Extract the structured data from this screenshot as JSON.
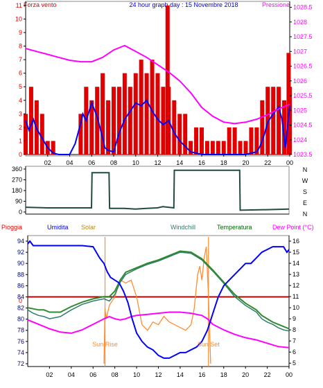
{
  "colors": {
    "red": "#e00000",
    "blue": "#0000ff",
    "magenta": "#ff00ff",
    "dark_green": "#006400",
    "olive": "#b8860b",
    "teal": "#2e7d6e",
    "orange": "#ff8c2e",
    "axis": "#000000",
    "background": "#ffffff"
  },
  "header": {
    "left_label": "Forza vento",
    "center_title": "24 hour graph day : 15 Novembre 2018",
    "right_label": "Pressione"
  },
  "x_ticks": [
    "02",
    "04",
    "06",
    "08",
    "10",
    "12",
    "14",
    "16",
    "18",
    "20",
    "22",
    "00"
  ],
  "panel1": {
    "left_ticks": [
      "0",
      "1",
      "2",
      "3",
      "4",
      "5",
      "6",
      "7",
      "8",
      "9",
      "10",
      "11"
    ],
    "right_ticks": [
      "1023.5",
      "1024",
      "1024.5",
      "1025",
      "1025.5",
      "1026",
      "1026.5",
      "1027",
      "1027.5",
      "1028",
      "1028.5"
    ]
  },
  "panel2": {
    "left_ticks": [
      "0",
      "90",
      "180",
      "270",
      "360"
    ],
    "right_letters": [
      "N",
      "W",
      "S",
      "E",
      "N"
    ]
  },
  "panel3": {
    "labels": {
      "pioggia": "Pioggia",
      "umidita": "Umidita",
      "solar": "Solar",
      "windchill": "Windchill",
      "temperatura": "Temperatura",
      "dewpoint": "Dew Point (°C)"
    },
    "left_ticks": [
      "72",
      "74",
      "76",
      "78",
      "80",
      "82",
      "84",
      "86",
      "88",
      "90",
      "92",
      "94"
    ],
    "right_ticks": [
      "5",
      "6",
      "7",
      "8",
      "9",
      "10",
      "11",
      "12",
      "13",
      "14",
      "15",
      "16"
    ],
    "rain_label": "0",
    "sunrise_label": "Sun Rise",
    "sunset_label": "Sun Set"
  },
  "chart_data": [
    {
      "type": "line",
      "title": "24 hour graph day : 15 Novembre 2018",
      "x_unit": "hour",
      "xlim": [
        0,
        24
      ],
      "left_axis": {
        "label": "Forza vento",
        "ylim": [
          0,
          11.3
        ]
      },
      "right_axis": {
        "label": "Pressione",
        "ylim": [
          1023.5,
          1028.7
        ]
      },
      "series": [
        {
          "name": "Forza vento",
          "axis": "left",
          "style": "bars",
          "x": [
            0.0,
            0.5,
            1.0,
            1.5,
            2.0,
            2.5,
            3.0,
            3.5,
            4.0,
            4.5,
            5.0,
            5.5,
            6.0,
            6.5,
            7.0,
            7.5,
            8.0,
            8.5,
            9.0,
            9.5,
            10.0,
            10.5,
            11.0,
            11.5,
            12.0,
            12.5,
            12.9,
            13.0,
            13.5,
            14.0,
            14.5,
            15.0,
            15.5,
            16.0,
            16.5,
            17.0,
            17.5,
            18.0,
            18.5,
            19.0,
            19.5,
            20.0,
            20.5,
            21.0,
            21.5,
            22.0,
            22.5,
            23.0,
            23.5,
            23.9,
            24.0
          ],
          "values": [
            3,
            5,
            4,
            3,
            1,
            1,
            0,
            0,
            0,
            0,
            3,
            5,
            4,
            5,
            6,
            4,
            5,
            5,
            6,
            5,
            6,
            7,
            6,
            7,
            6,
            5,
            11,
            5,
            4,
            3,
            3,
            1,
            2,
            2,
            1,
            1,
            1,
            1,
            2,
            2,
            1,
            1,
            2,
            2,
            4,
            5,
            5,
            5,
            4,
            7.5,
            5
          ]
        },
        {
          "name": "Wind",
          "axis": "left",
          "style": "line",
          "x": [
            0.0,
            0.3,
            0.7,
            1.0,
            1.5,
            2.0,
            2.5,
            3.0,
            3.5,
            4.0,
            4.5,
            5.0,
            5.2,
            5.5,
            6.0,
            6.5,
            7.0,
            7.2,
            7.5,
            8.0,
            8.5,
            9.0,
            9.5,
            10.0,
            10.5,
            11.0,
            11.5,
            12.0,
            12.5,
            13.0,
            13.5,
            14.0,
            14.5,
            15.0,
            15.5,
            16.0,
            17.0,
            18.0,
            19.0,
            20.0,
            21.0,
            21.3,
            21.7,
            22.0,
            22.5,
            23.0,
            23.3,
            23.6,
            24.0
          ],
          "values": [
            2.5,
            1.8,
            2.6,
            1.9,
            1.2,
            0.5,
            0.1,
            0.0,
            0.0,
            0.0,
            0.8,
            2.3,
            3.0,
            2.5,
            3.8,
            2.8,
            1.2,
            0.5,
            0.3,
            0.2,
            1.6,
            2.6,
            3.2,
            3.8,
            3.6,
            4.0,
            3.2,
            2.6,
            2.2,
            2.5,
            1.6,
            1.0,
            0.6,
            0.2,
            0.1,
            0.0,
            0.0,
            0.0,
            0.0,
            0.0,
            0.2,
            0.6,
            1.5,
            2.4,
            3.0,
            3.5,
            2.6,
            0.5,
            3.6
          ]
        },
        {
          "name": "Pressione",
          "axis": "right",
          "style": "line",
          "x": [
            0.0,
            1.0,
            2.0,
            3.0,
            4.0,
            5.0,
            6.0,
            7.0,
            8.0,
            9.0,
            10.0,
            11.0,
            12.0,
            13.0,
            14.0,
            15.0,
            16.0,
            17.0,
            18.0,
            19.0,
            20.0,
            21.0,
            22.0,
            23.0,
            24.0
          ],
          "values": [
            1027.1,
            1027.0,
            1026.9,
            1026.8,
            1026.7,
            1026.65,
            1026.65,
            1026.8,
            1027.05,
            1027.2,
            1027.0,
            1026.8,
            1026.55,
            1026.3,
            1026.0,
            1025.6,
            1025.1,
            1024.8,
            1024.6,
            1024.55,
            1024.6,
            1024.7,
            1024.85,
            1025.05,
            1025.2
          ]
        }
      ]
    },
    {
      "type": "line",
      "title": "",
      "x_unit": "hour",
      "xlim": [
        0,
        24
      ],
      "ylim": [
        0,
        360
      ],
      "ylabel": "",
      "series": [
        {
          "name": "Wind direction",
          "x": [
            0.0,
            2.0,
            4.0,
            6.0,
            6.05,
            7.6,
            7.65,
            9.0,
            10.0,
            11.0,
            12.0,
            12.5,
            13.5,
            13.55,
            19.5,
            19.55,
            22.0,
            24.0
          ],
          "values": [
            40,
            35,
            35,
            35,
            330,
            330,
            30,
            30,
            25,
            30,
            35,
            45,
            35,
            350,
            350,
            15,
            20,
            25
          ]
        }
      ]
    },
    {
      "type": "line",
      "title": "",
      "x_unit": "hour",
      "xlim": [
        0,
        24
      ],
      "left_axis": {
        "label": "Umidita",
        "ylim": [
          71.5,
          95
        ]
      },
      "right_axis": {
        "label": "Dew Point (°C)",
        "ylim": [
          4.7,
          16.5
        ]
      },
      "series": [
        {
          "name": "Umidita",
          "axis": "left",
          "x": [
            0.0,
            0.2,
            0.5,
            1.0,
            2.0,
            3.0,
            4.0,
            5.0,
            6.0,
            6.3,
            6.6,
            7.0,
            7.3,
            7.6,
            8.0,
            8.4,
            8.8,
            9.2,
            9.6,
            10.0,
            10.5,
            11.0,
            11.5,
            12.0,
            12.5,
            13.0,
            13.5,
            14.0,
            14.5,
            15.0,
            15.5,
            16.0,
            16.5,
            17.0,
            17.5,
            18.0,
            18.5,
            19.0,
            19.5,
            20.0,
            20.5,
            21.0,
            21.5,
            22.0,
            22.5,
            23.0,
            23.5,
            23.8,
            24.0
          ],
          "values": [
            93.5,
            94.0,
            93.2,
            93.2,
            93.2,
            93.2,
            93.2,
            93.2,
            93.0,
            92.0,
            91.0,
            90.0,
            88.5,
            87.5,
            87.0,
            86.5,
            85.0,
            83.0,
            80.0,
            77.5,
            76.0,
            75.0,
            74.5,
            73.5,
            73.0,
            73.0,
            73.5,
            74.0,
            74.0,
            74.5,
            75.0,
            76.0,
            78.0,
            81.0,
            84.0,
            86.0,
            87.0,
            88.0,
            89.0,
            90.0,
            90.0,
            91.0,
            92.0,
            92.5,
            93.0,
            93.0,
            93.0,
            92.0,
            92.5
          ]
        },
        {
          "name": "Solar",
          "axis": "left",
          "x": [
            7.0,
            7.1,
            7.2,
            7.5,
            8.0,
            8.5,
            9.0,
            9.5,
            10.0,
            10.5,
            11.0,
            11.5,
            12.0,
            12.5,
            13.0,
            13.5,
            14.0,
            14.5,
            15.0,
            15.3,
            15.6,
            15.8,
            16.0,
            16.2,
            16.4,
            16.6,
            16.8
          ],
          "values": [
            72.0,
            82.0,
            80.0,
            82.5,
            84.0,
            87.0,
            86.5,
            87.0,
            84.0,
            79.0,
            78.0,
            79.5,
            79.0,
            80.5,
            79.5,
            79.0,
            78.5,
            78.0,
            79.0,
            82.0,
            88.0,
            89.5,
            87.0,
            91.0,
            93.0,
            84.0,
            72.0
          ]
        },
        {
          "name": "Windchill",
          "axis": "right",
          "x": [
            0.0,
            0.5,
            1.0,
            1.5,
            2.0,
            3.0,
            4.0,
            5.0,
            6.0,
            7.0,
            7.5,
            8.0,
            8.5,
            9.0,
            10.0,
            11.0,
            12.0,
            13.0,
            14.0,
            15.0,
            16.0,
            17.0,
            18.0,
            19.0,
            20.0,
            21.0,
            21.5,
            22.0,
            22.5,
            23.0,
            23.5,
            24.0
          ],
          "values": [
            9.8,
            9.5,
            9.3,
            9.2,
            9.0,
            9.2,
            9.8,
            10.3,
            10.6,
            10.8,
            10.6,
            11.2,
            12.3,
            13.0,
            13.5,
            13.9,
            14.2,
            14.6,
            15.0,
            14.9,
            14.3,
            13.3,
            12.2,
            11.0,
            10.2,
            9.6,
            9.0,
            8.7,
            8.5,
            8.2,
            8.0,
            7.9
          ]
        },
        {
          "name": "Temperatura",
          "axis": "right",
          "x": [
            0.0,
            0.5,
            1.0,
            1.5,
            2.0,
            3.0,
            4.0,
            5.0,
            6.0,
            7.0,
            7.5,
            8.0,
            8.5,
            9.0,
            10.0,
            11.0,
            12.0,
            13.0,
            14.0,
            15.0,
            16.0,
            17.0,
            18.0,
            19.0,
            20.0,
            21.0,
            21.5,
            22.0,
            22.5,
            23.0,
            23.5,
            24.0
          ],
          "values": [
            10.0,
            9.9,
            9.8,
            9.8,
            9.6,
            9.6,
            10.1,
            10.5,
            10.8,
            11.0,
            11.0,
            11.5,
            12.5,
            13.2,
            13.6,
            14.0,
            14.3,
            14.7,
            15.1,
            15.0,
            14.4,
            13.4,
            12.3,
            11.2,
            10.4,
            9.8,
            9.3,
            9.0,
            8.7,
            8.5,
            8.3,
            8.1
          ]
        },
        {
          "name": "Dew Point",
          "axis": "right",
          "x": [
            0.0,
            1.0,
            2.0,
            3.0,
            4.0,
            5.0,
            6.0,
            7.0,
            7.5,
            8.0,
            8.5,
            9.0,
            9.5,
            10.0,
            11.0,
            12.0,
            13.0,
            14.0,
            15.0,
            16.0,
            16.5,
            17.0,
            18.0,
            19.0,
            20.0,
            21.0,
            22.0,
            23.0,
            24.0
          ],
          "values": [
            8.9,
            8.5,
            8.1,
            7.8,
            7.7,
            8.0,
            8.5,
            9.0,
            9.2,
            9.0,
            8.9,
            9.0,
            9.2,
            9.3,
            9.4,
            9.5,
            9.6,
            9.6,
            9.5,
            9.3,
            9.0,
            8.5,
            8.0,
            7.6,
            7.3,
            7.1,
            6.8,
            6.5,
            6.4
          ]
        },
        {
          "name": "Pioggia",
          "axis": "left",
          "x": [
            0,
            24
          ],
          "values": [
            84,
            84
          ]
        }
      ],
      "annotations": [
        {
          "text": "Sun Rise",
          "x": 7.1
        },
        {
          "text": "Sun Set",
          "x": 16.6
        }
      ]
    }
  ]
}
